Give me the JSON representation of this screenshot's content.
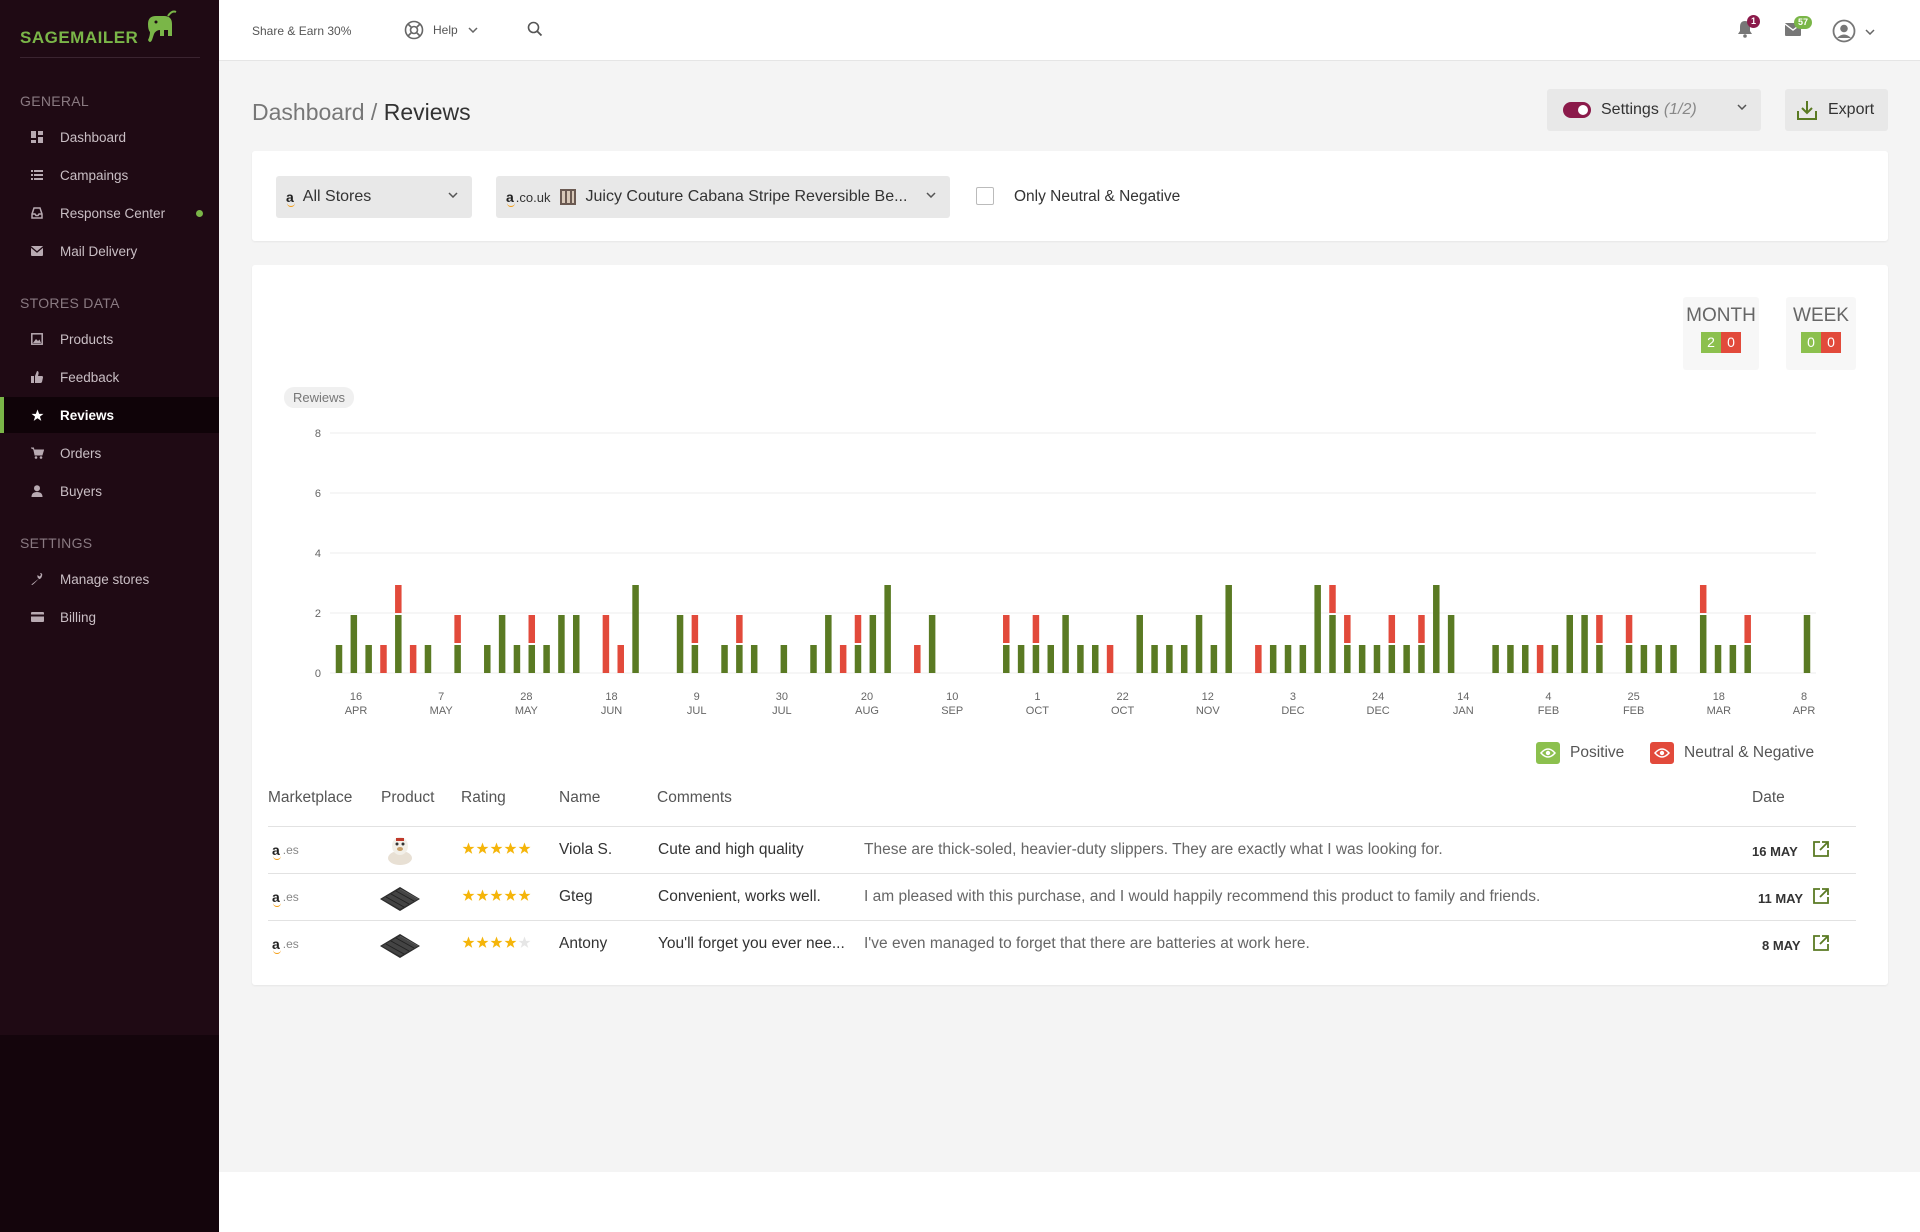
{
  "app": {
    "logo_text": "SAGEMAILER",
    "share": "Share & Earn 30%",
    "help": "Help",
    "notifications_count": "1",
    "messages_count": "57"
  },
  "sidebar": {
    "sections": [
      {
        "title": "GENERAL"
      },
      {
        "title": "STORES DATA"
      },
      {
        "title": "SETTINGS"
      }
    ],
    "items": [
      {
        "label": "Dashboard",
        "icon": "dashboard-icon"
      },
      {
        "label": "Campaings",
        "icon": "list-icon"
      },
      {
        "label": "Response Center",
        "icon": "inbox-icon"
      },
      {
        "label": "Mail Delivery",
        "icon": "envelope-icon"
      },
      {
        "label": "Products",
        "icon": "image-icon"
      },
      {
        "label": "Feedback",
        "icon": "thumbs-up-icon"
      },
      {
        "label": "Reviews",
        "icon": "star-icon"
      },
      {
        "label": "Orders",
        "icon": "cart-icon"
      },
      {
        "label": "Buyers",
        "icon": "user-icon"
      },
      {
        "label": "Manage stores",
        "icon": "wrench-icon"
      },
      {
        "label": "Billing",
        "icon": "credit-card-icon"
      }
    ]
  },
  "header": {
    "breadcrumb_root": "Dashboard",
    "breadcrumb_sep": " / ",
    "breadcrumb_current": "Reviews",
    "settings_label": "Settings",
    "settings_count": "(1/2)",
    "export_label": "Export"
  },
  "filters": {
    "stores": "All Stores",
    "marketplace": ".co.uk",
    "product": "Juicy Couture Cabana Stripe Reversible Be...",
    "only_negative_label": "Only Neutral & Negative",
    "only_negative_checked": false
  },
  "summary": {
    "month_label": "MONTH",
    "month_positive": "2",
    "month_negative": "0",
    "week_label": "WEEK",
    "week_positive": "0",
    "week_negative": "0"
  },
  "colors": {
    "positive": "#5a7a23",
    "negative": "#e24a3b",
    "positive_light": "#8cc04e",
    "brand": "#7ab648",
    "accent": "#8b1a4a"
  },
  "chart_data": {
    "type": "bar",
    "stacked": true,
    "title": "Rewiews",
    "ylim": [
      0,
      8
    ],
    "yticks": [
      "0",
      "2",
      "4",
      "6",
      "8"
    ],
    "xticks": [
      {
        "day": "16",
        "month": "APR"
      },
      {
        "day": "7",
        "month": "MAY"
      },
      {
        "day": "28",
        "month": "MAY"
      },
      {
        "day": "18",
        "month": "JUN"
      },
      {
        "day": "9",
        "month": "JUL"
      },
      {
        "day": "30",
        "month": "JUL"
      },
      {
        "day": "20",
        "month": "AUG"
      },
      {
        "day": "10",
        "month": "SEP"
      },
      {
        "day": "1",
        "month": "OCT"
      },
      {
        "day": "22",
        "month": "OCT"
      },
      {
        "day": "12",
        "month": "NOV"
      },
      {
        "day": "3",
        "month": "DEC"
      },
      {
        "day": "24",
        "month": "DEC"
      },
      {
        "day": "14",
        "month": "JAN"
      },
      {
        "day": "4",
        "month": "FEB"
      },
      {
        "day": "25",
        "month": "FEB"
      },
      {
        "day": "18",
        "month": "MAR"
      },
      {
        "day": "8",
        "month": "APR"
      }
    ],
    "series": [
      {
        "name": "Positive",
        "values": [
          1,
          2,
          1,
          0,
          2,
          0,
          1,
          0,
          1,
          0,
          1,
          2,
          1,
          1,
          1,
          2,
          2,
          0,
          0,
          0,
          3,
          0,
          0,
          2,
          1,
          0,
          1,
          1,
          1,
          0,
          1,
          0,
          1,
          2,
          0,
          1,
          2,
          3,
          0,
          0,
          2,
          0,
          0,
          0,
          0,
          1,
          1,
          1,
          1,
          2,
          1,
          1,
          0,
          0,
          2,
          1,
          1,
          1,
          2,
          1,
          3,
          0,
          0,
          1,
          1,
          1,
          3,
          2,
          1,
          1,
          1,
          1,
          1,
          1,
          3,
          2,
          0,
          0,
          1,
          1,
          1,
          0,
          1,
          2,
          2,
          1,
          0,
          1,
          1,
          1,
          1,
          0,
          2,
          1,
          1,
          1,
          0,
          0,
          0,
          2
        ]
      },
      {
        "name": "Neutral & Negative",
        "values": [
          0,
          0,
          0,
          1,
          1,
          1,
          0,
          0,
          1,
          0,
          0,
          0,
          0,
          1,
          0,
          0,
          0,
          0,
          2,
          1,
          0,
          0,
          0,
          0,
          1,
          0,
          0,
          1,
          0,
          0,
          0,
          0,
          0,
          0,
          1,
          1,
          0,
          0,
          0,
          1,
          0,
          0,
          0,
          0,
          0,
          1,
          0,
          1,
          0,
          0,
          0,
          0,
          1,
          0,
          0,
          0,
          0,
          0,
          0,
          0,
          0,
          0,
          1,
          0,
          0,
          0,
          0,
          1,
          1,
          0,
          0,
          1,
          0,
          1,
          0,
          0,
          0,
          0,
          0,
          0,
          0,
          1,
          0,
          0,
          0,
          1,
          0,
          1,
          0,
          0,
          0,
          0,
          1,
          0,
          0,
          1,
          0,
          0,
          0,
          0
        ]
      }
    ],
    "legend": [
      "Positive",
      "Neutral & Negative"
    ],
    "legend_position": "bottom-right",
    "grid": true
  },
  "table": {
    "headers": [
      "Marketplace",
      "Product",
      "Rating",
      "Name",
      "Comments",
      "Date"
    ],
    "rows": [
      {
        "marketplace": ".es",
        "rating": 5,
        "name": "Viola S.",
        "title": "Cute and high quality",
        "comment": "These are thick-soled, heavier-duty slippers. They are exactly what I was looking for.",
        "date": "16 MAY",
        "product_icon": "slipper-icon"
      },
      {
        "marketplace": ".es",
        "rating": 5,
        "name": "Gteg",
        "title": "Convenient, works well.",
        "comment": "I am pleased with this purchase, and I would happily recommend this product to family and friends.",
        "date": "11 MAY",
        "product_icon": "keyboard-icon"
      },
      {
        "marketplace": ".es",
        "rating": 4,
        "name": "Antony",
        "title": "You'll forget you ever nee...",
        "comment": "I've even managed to forget that there are batteries at work here.",
        "date": "8 MAY",
        "product_icon": "keyboard-icon"
      }
    ]
  }
}
